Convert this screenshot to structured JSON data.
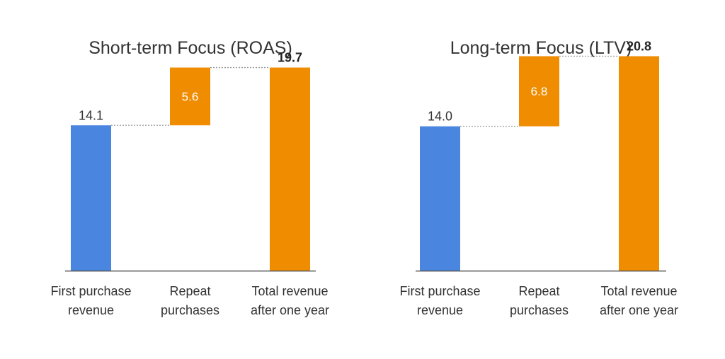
{
  "colors": {
    "first": "#4a86e0",
    "orange": "#f08c00",
    "axis": "#555555",
    "connector": "#999999",
    "accent": "#f5a623"
  },
  "chart_data": [
    {
      "type": "bar",
      "subtype": "waterfall",
      "title": "Short-term Focus (ROAS)",
      "categories": [
        "First purchase revenue",
        "Repeat purchases",
        "Total revenue after one year"
      ],
      "category_lines": [
        [
          "First purchase",
          "revenue"
        ],
        [
          "Repeat",
          "purchases"
        ],
        [
          "Total revenue",
          "after one year"
        ]
      ],
      "values": [
        14.1,
        5.6,
        19.7
      ],
      "labels": [
        "14.1",
        "5.6",
        "19.7"
      ],
      "ylim": [
        0,
        22
      ]
    },
    {
      "type": "bar",
      "subtype": "waterfall",
      "title": "Long-term Focus (LTV)",
      "categories": [
        "First purchase revenue",
        "Repeat purchases",
        "Total revenue after one year"
      ],
      "category_lines": [
        [
          "First purchase",
          "revenue"
        ],
        [
          "Repeat",
          "purchases"
        ],
        [
          "Total revenue",
          "after one year"
        ]
      ],
      "values": [
        14.0,
        6.8,
        20.8
      ],
      "labels": [
        "14.0",
        "6.8",
        "20.8"
      ],
      "ylim": [
        0,
        22
      ]
    }
  ]
}
